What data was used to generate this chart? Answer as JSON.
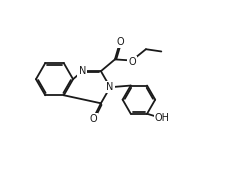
{
  "bg_color": "#ffffff",
  "line_color": "#1a1a1a",
  "line_width": 1.3,
  "font_size": 7.0,
  "fig_width": 2.38,
  "fig_height": 1.81,
  "dpi": 100,
  "xlim": [
    0,
    10
  ],
  "ylim": [
    0,
    8
  ]
}
